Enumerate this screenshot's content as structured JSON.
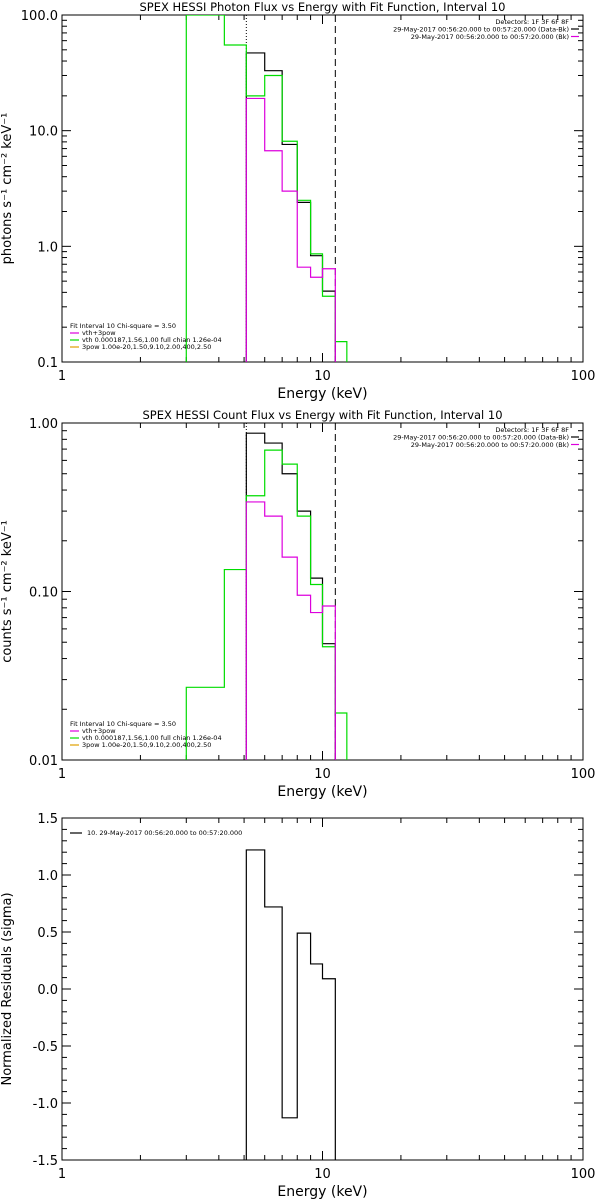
{
  "chart_data": [
    {
      "type": "line",
      "title": "SPEX HESSI Photon Flux vs Energy with Fit Function, Interval 10",
      "xlabel": "Energy (keV)",
      "ylabel": "photons s⁻¹ cm⁻² keV⁻¹",
      "xscale": "log",
      "yscale": "log",
      "xlim": [
        1,
        100
      ],
      "ylim": [
        0.1,
        100
      ],
      "xticks": [
        1,
        10,
        100
      ],
      "xtick_labels": [
        "1",
        "10",
        "100"
      ],
      "yticks": [
        0.1,
        1,
        10,
        100
      ],
      "ytick_labels": [
        "0.1",
        "1.0",
        "10.0",
        "100.0"
      ],
      "info_lines": [
        "Detectors: 1F 3F 6F 8F",
        "29-May-2017 00:56:20.000 to 00:57:20.000 (Data-Bk)",
        "29-May-2017 00:56:20.000 to 00:57:20.000 (Bk)"
      ],
      "fit_lines": [
        "Fit Interval 10   Chi-square = 3.50",
        "vth+3pow",
        "vth 0.000187,1.56,1.00   full chian 1.26e-04",
        "3pow 1.00e-20,1.50,9.10,2.00,400,2.50"
      ],
      "vlines": [
        {
          "x": 5.1,
          "style": "dotted"
        },
        {
          "x": 11.2,
          "style": "dashed"
        }
      ],
      "series": [
        {
          "color": "#000000",
          "edges": [
            5.1,
            6.0,
            7.0,
            8.0,
            9.0,
            10.0,
            11.2
          ],
          "values": [
            47,
            33,
            7.6,
            2.4,
            0.83,
            0.41
          ]
        },
        {
          "color": "#00dd00",
          "edges": [
            3.0,
            3.5,
            4.2,
            5.1,
            6.0,
            7.0,
            8.0,
            9.0,
            10.0,
            11.2,
            12.4
          ],
          "values": [
            100,
            100,
            55,
            20,
            30,
            8.1,
            2.5,
            0.86,
            0.37,
            0.15
          ]
        },
        {
          "color": "#dd00dd",
          "edges": [
            5.1,
            6.0,
            7.0,
            8.0,
            9.0,
            10.0,
            11.2
          ],
          "values": [
            19,
            6.7,
            3.0,
            0.66,
            0.54,
            0.64
          ]
        }
      ]
    },
    {
      "type": "line",
      "title": "SPEX HESSI Count Flux vs Energy with Fit Function, Interval 10",
      "xlabel": "Energy (keV)",
      "ylabel": "counts s⁻¹ cm⁻² keV⁻¹",
      "xscale": "log",
      "yscale": "log",
      "xlim": [
        1,
        100
      ],
      "ylim": [
        0.01,
        1
      ],
      "xticks": [
        1,
        10,
        100
      ],
      "xtick_labels": [
        "1",
        "10",
        "100"
      ],
      "yticks": [
        0.01,
        0.1,
        1
      ],
      "ytick_labels": [
        "0.01",
        "0.10",
        "1.00"
      ],
      "info_lines": [
        "Detectors: 1F 3F 6F 8F",
        "29-May-2017 00:56:20.000 to 00:57:20.000 (Data-Bk)",
        "29-May-2017 00:56:20.000 to 00:57:20.000 (Bk)"
      ],
      "fit_lines": [
        "Fit Interval 10   Chi-square = 3.50",
        "vth+3pow",
        "vth 0.000187,1.56,1.00   full chian 1.26e-04",
        "3pow 1.00e-20,1.50,9.10,2.00,400,2.50"
      ],
      "vlines": [
        {
          "x": 5.1,
          "style": "dotted"
        },
        {
          "x": 11.2,
          "style": "dashed"
        }
      ],
      "series": [
        {
          "color": "#000000",
          "edges": [
            5.1,
            6.0,
            7.0,
            8.0,
            9.0,
            10.0,
            11.2
          ],
          "values": [
            0.87,
            0.76,
            0.5,
            0.3,
            0.12,
            0.049
          ]
        },
        {
          "color": "#00dd00",
          "edges": [
            3.0,
            3.5,
            4.2,
            5.1,
            6.0,
            7.0,
            8.0,
            9.0,
            10.0,
            11.2,
            12.4
          ],
          "values": [
            0.027,
            0.027,
            0.135,
            0.37,
            0.69,
            0.57,
            0.28,
            0.11,
            0.047,
            0.019
          ]
        },
        {
          "color": "#dd00dd",
          "edges": [
            5.1,
            6.0,
            7.0,
            8.0,
            9.0,
            10.0,
            11.2
          ],
          "values": [
            0.34,
            0.28,
            0.16,
            0.095,
            0.075,
            0.082
          ]
        }
      ]
    },
    {
      "type": "line",
      "title": "",
      "xlabel": "Energy (keV)",
      "ylabel": "Normalized Residuals (sigma)",
      "xscale": "log",
      "yscale": "linear",
      "xlim": [
        1,
        100
      ],
      "ylim": [
        -1.5,
        1.5
      ],
      "xticks": [
        1,
        10,
        100
      ],
      "xtick_labels": [
        "1",
        "10",
        "100"
      ],
      "yticks": [
        -1.5,
        -1.0,
        -0.5,
        0.0,
        0.5,
        1.0,
        1.5
      ],
      "ytick_labels": [
        "-1.5",
        "-1.0",
        "-0.5",
        "0.0",
        "0.5",
        "1.0",
        "1.5"
      ],
      "info_lines": [],
      "fit_lines": [],
      "legend": "10. 29-May-2017 00:56:20.000 to 00:57:20.000",
      "vlines": [],
      "series": [
        {
          "color": "#000000",
          "edges": [
            5.1,
            6.0,
            7.0,
            8.0,
            9.0,
            10.0,
            11.2
          ],
          "values": [
            1.22,
            0.72,
            -1.13,
            0.49,
            0.22,
            0.09
          ]
        }
      ]
    }
  ]
}
